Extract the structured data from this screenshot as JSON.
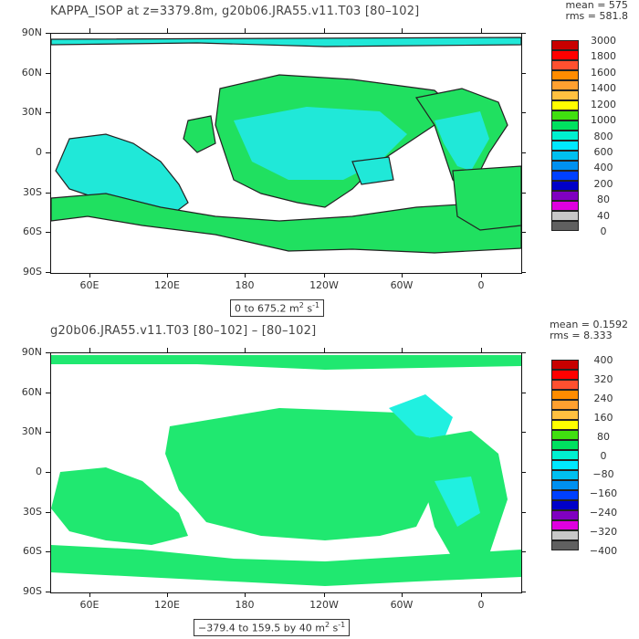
{
  "panels": [
    {
      "title": "KAPPA_ISOP at z=3379.8m, g20b06.JRA55.v11.T03 [80–102]",
      "stats": "mean = 575\nrms = 581.8",
      "range_text": "0 to 675.2 m",
      "range_unit_sup": "2",
      "range_unit_tail": " s",
      "range_unit_exp": "-1",
      "colorbar": {
        "labels": [
          "3000",
          "1800",
          "1600",
          "1400",
          "1200",
          "1000",
          "800",
          "600",
          "400",
          "200",
          "80",
          "40",
          "0"
        ],
        "colors": [
          "#c80000",
          "#ff0000",
          "#ff5030",
          "#ff8c00",
          "#ffa030",
          "#ffc040",
          "#ffff00",
          "#40e010",
          "#00e060",
          "#00f0d0",
          "#00e8ff",
          "#00c0f0",
          "#0090f0",
          "#0040ff",
          "#0000c8",
          "#8000c0",
          "#e000e0",
          "#c8c8c8",
          "#606060"
        ]
      },
      "fill_color": "#20e060",
      "secondary_color": "#20e8d8"
    },
    {
      "title": "g20b06.JRA55.v11.T03 [80–102] –  [80–102]",
      "stats": "mean = 0.1592\nrms = 8.333",
      "range_text": "−379.4 to 159.5 by 40 m",
      "range_unit_sup": "2",
      "range_unit_tail": " s",
      "range_unit_exp": "-1",
      "colorbar": {
        "labels": [
          "400",
          "320",
          "240",
          "160",
          "80",
          "0",
          "−80",
          "−160",
          "−240",
          "−320",
          "−400"
        ],
        "colors": [
          "#c80000",
          "#ff0000",
          "#ff5030",
          "#ff8c00",
          "#ffa030",
          "#ffc040",
          "#ffff00",
          "#40e010",
          "#00e060",
          "#00f0d0",
          "#00e8ff",
          "#00c0f0",
          "#0090f0",
          "#0040ff",
          "#0000c8",
          "#8000c0",
          "#e000e0",
          "#c8c8c8",
          "#606060"
        ]
      },
      "fill_color": "#20e870",
      "secondary_color": "#20f0e0"
    }
  ],
  "axes": {
    "lat_labels": [
      "90N",
      "60N",
      "30N",
      "0",
      "30S",
      "60S",
      "90S"
    ],
    "lon_labels": [
      "60E",
      "120E",
      "180",
      "120W",
      "60W",
      "0"
    ]
  }
}
